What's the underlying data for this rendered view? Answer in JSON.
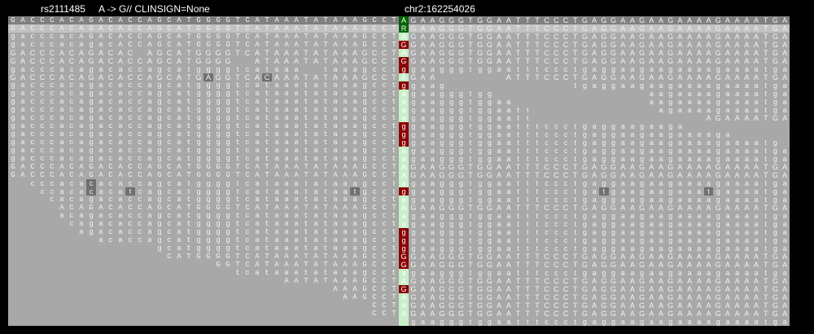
{
  "header": {
    "variant_id": "rs2111485",
    "variant_info": "A -> G// CLINSIGN=None",
    "position": "chr2:162254026"
  },
  "colors": {
    "reference_base": "#006400",
    "ref_allele_in_read": "#c8f0c8",
    "alt_allele_in_read": "#8b0000",
    "mismatch": "#707070",
    "read_background": "#a8a8a8"
  },
  "pileup": {
    "rows": [
      {
        "kind": "reference",
        "left": "GACCCACAGACACCAGCATGGGGTCATAAATATAAAGCCT",
        "mid": "A",
        "right": "GAAGGGTGGAATTTCCCTGAGGAAGAAGAAAAGAAAATGA"
      },
      {
        "kind": "consensus",
        "left": "GACCCACAGACACCAGCATGGGGTCATAAATATAAAGCCT",
        "mid": "R",
        "right": "GAAGGGTGGAATTTCCCTGAGGAAGAAGAAAAGAAAATGA"
      },
      {
        "left": "gacccacAGACACCAGCATGGGGTCATAAATATAAAGCCT",
        "mid": "A",
        "right": "GAAGGGTGGAATTTCCCTGAGGAAGAAGAAAAGAAAATGA"
      },
      {
        "left": "gacccacagacACCAGCATGGGGTCATAAATATAAAGCCT",
        "mid": "G",
        "right": "GAAGGGTGGAATTTCCCTGAGGAAGAAGAAAAGAAAATGA"
      },
      {
        "left": "GACCCACAGACAC.AGCATGGGGTCATAAATATAAAGCCT",
        "mid": "A",
        "right": "GAAGGGTGGAATTTCCCTGAGGAAGAAGAAAAGAAAATGA"
      },
      {
        "left": "GACCCACAGACACCAGCATGGGG..ATAAATATAAAGCCT",
        "mid": "G",
        "right": "GAAGGGTGGAATTTCCCTGAGGAAGAAGAAAAGAAAATGA"
      },
      {
        "left": "gacccacagacaccagcatggggtcataaa..taaagcct",
        "mid": "g",
        "right": "gaagggtggaatttccctgaggaagaagaaaagaaaatga"
      },
      {
        "left": "GACCCACAGACACCAGCATGAGGTCACAAATATAAAGCCT",
        "mid": "A",
        "right": "GAA.......ATTTCCCTGAGGAAGAAGAAAAGAAAATGA",
        "mismatches": [
          20,
          26
        ]
      },
      {
        "left": "gacccacagacaccagcatggggtcataaatataaagcct",
        "mid": "g",
        "right": "gaag.............tgaggaagaagaaaagaaaatga"
      },
      {
        "left": "gacccacagacaccagcatggggtcataaatataaagcct",
        "mid": "a",
        "right": "gaagggtgg................aagaaaagaaaatga"
      },
      {
        "left": "gacccacagacaccagcatggggtcataaatataaagcct",
        "mid": "a",
        "right": "gaagggtggaa..............aagaaaagaaaatga"
      },
      {
        "left": "gacccacagacaccagcatggggtcataaatataaagcct",
        "mid": "a",
        "right": "gaagggtggaatt.............agaaaagaaaatga"
      },
      {
        "left": "gacccacagacaccagcatggggtcataaatataaagcct",
        "mid": "a",
        "right": "gaagggtggaatt..................AGAAAATGA"
      },
      {
        "left": "gacccacagacaccagcatggggtcataaatataaagcct",
        "mid": "g",
        "right": "gaagggtggaatttccctgaggaagaaga"
      },
      {
        "left": "gacccacagacaccagcatggggtcataaatataaagcct",
        "mid": "g",
        "right": "gaagggtggaatttccctgaggaagaagaaaaga"
      },
      {
        "left": "gacccacagacaccagcatggggtcataaatataaagcct",
        "mid": "g",
        "right": "gaagggtggaatttccctgaggaagaagaaaagaaaatg"
      },
      {
        "left": "gacccacagacaccagcatggggtcataaatataaagcct",
        "mid": "a",
        "right": "gaagggtggaatttccctgaggaagaagaaaagaaaatga"
      },
      {
        "left": "gacccacagacaccagcatggggtcataaatataaagcct",
        "mid": "a",
        "right": "gaagggtggaatttccctgaggaagaagaaaagaaaatga"
      },
      {
        "left": "GACCCACAGACACCAGCATGGGGTCATAAATATAAAGCCT",
        "mid": "A",
        "right": "GAAGGGTGGAATTTCCCTGAGGAAGAAGAAAAGAAAATGA"
      },
      {
        "left": "GACCCACAGACACCAGCATGGGGTCATAAATATAAAGCCT",
        "mid": "A",
        "right": "GAAGGGTGGAATTTCCCTGAGGAAGAAGAAAAGAAAATGA"
      },
      {
        "left": "cccacacacaccagcatggggtcataaatataaagcct",
        "mid": "a",
        "right": "gaagggtggaatttccctgaggaagaagaaaagaaaatga",
        "mismatches": [
          8
        ]
      },
      {
        "left": "ccacacacatcagcatggggtcataaatataatgcct",
        "mid": "g",
        "right": "gaagggtggaatttccctgatgaagaagaaatgaaaatga",
        "mismatches": [
          8,
          12,
          35,
          61,
          72
        ]
      },
      {
        "left": "cacagacaccagcatggggtcataaatataaagcct",
        "mid": "a",
        "right": "gaagggtggaatttccctgaggaagaagaaaagaaaatga"
      },
      {
        "left": "ACAGACACCAGCATGGGGTCATAAATATAAAGCCT",
        "mid": "A",
        "right": "GAAGGGTGGAATTTCCCTGAGGAAGAAGAAAAGAAAATGA"
      },
      {
        "left": "acagacaccagcatggggtcataaatataaagcct",
        "mid": "a",
        "right": "gaagggtggaatttccctgaggaagaagaaaagaaaatga"
      },
      {
        "left": "cagacaccagcatggggtcataaatataaagcct",
        "mid": "a",
        "right": "gaagggtggaatttccctgaggaagaagaaaagaaaatga"
      },
      {
        "left": "agacaccagcatggggtcataaatataaagcct",
        "mid": "g",
        "right": "gaagggtggaatttccctgaggaagaagaaaagaaaatga"
      },
      {
        "left": "acaccagcatggggtcataaatataaagcct",
        "mid": "g",
        "right": "gaagggtggaatttccctgaggaagaagaaaagaaaatga"
      },
      {
        "left": "gcatggggtcataaatataaagcct",
        "mid": "g",
        "right": "gaagggtggaatttccctgaggaagaagaaaagaaaatga"
      },
      {
        "left": "CATGGGGTCATAAATATAAAGCCT",
        "mid": "G",
        "right": "GAAGGGTGGAATTTCCCTGAGGAAGAAGAAAAGAAAATGA"
      },
      {
        "left": "GGTCATAAATATAAAGCCT",
        "mid": "G",
        "right": "GAAGGGTGGAATTTCCCTGAGGAAGAAGAAAAGAAAATGA"
      },
      {
        "left": "tcataaatataaagcct",
        "mid": "a",
        "right": "gaagggtggaatttccctgaggaagaagaaaagaaaatga"
      },
      {
        "left": "AATATAAAGCCT",
        "mid": "A",
        "right": "GAAGGGTGGAATTTCCCTGAGGAAGAAGAAAAGAAAATGA"
      },
      {
        "left": "AAAGCCT",
        "mid": "G",
        "right": "GAAGGGTGGAATTTCCCTGAGGAAGAAGAAAAGAAAATGA"
      },
      {
        "left": "AAGCCT",
        "mid": "A",
        "right": "GAAGGGTGGAATTTCCCTGAGGAAGAAGAAAAGAAAATGA"
      },
      {
        "left": "CCT",
        "mid": "A",
        "right": "GAAGGGTGGAATTTCCCTGAGGAAGAAGAAAAGAAAATGA"
      },
      {
        "left": "CCT",
        "mid": "A",
        "right": "GAAGGGTGGAATTTCCCTGAGGAAGAAGAAAAGAAAATGA"
      },
      {
        "left": "",
        "mid": "",
        "right": "gaagggtggaatttccctgaggaagaagaaaagaaaatga"
      }
    ]
  }
}
